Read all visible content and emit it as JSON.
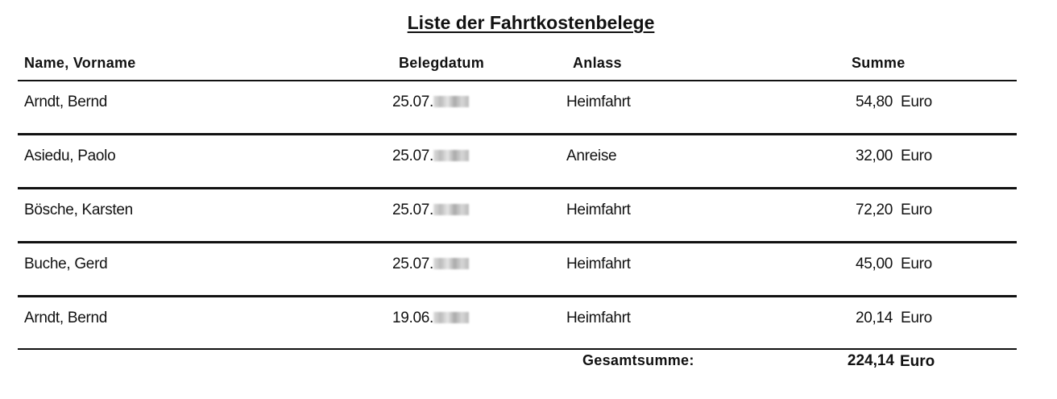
{
  "title": "Liste der Fahrtkostenbelege",
  "columns": {
    "name": "Name, Vorname",
    "date": "Belegdatum",
    "occasion": "Anlass",
    "sum": "Summe"
  },
  "rows": [
    {
      "name": "Arndt, Bernd",
      "date": "25.07.",
      "occasion": "Heimfahrt",
      "amount": "54,80",
      "currency": "Euro"
    },
    {
      "name": "Asiedu, Paolo",
      "date": "25.07.",
      "occasion": "Anreise",
      "amount": "32,00",
      "currency": "Euro"
    },
    {
      "name": "Bösche, Karsten",
      "date": "25.07.",
      "occasion": "Heimfahrt",
      "amount": "72,20",
      "currency": "Euro"
    },
    {
      "name": "Buche, Gerd",
      "date": "25.07.",
      "occasion": "Heimfahrt",
      "amount": "45,00",
      "currency": "Euro"
    },
    {
      "name": "Arndt, Bernd",
      "date": "19.06.",
      "occasion": "Heimfahrt",
      "amount": "20,14",
      "currency": "Euro"
    }
  ],
  "total": {
    "label": "Gesamtsumme:",
    "amount": "224,14",
    "currency": "Euro"
  }
}
